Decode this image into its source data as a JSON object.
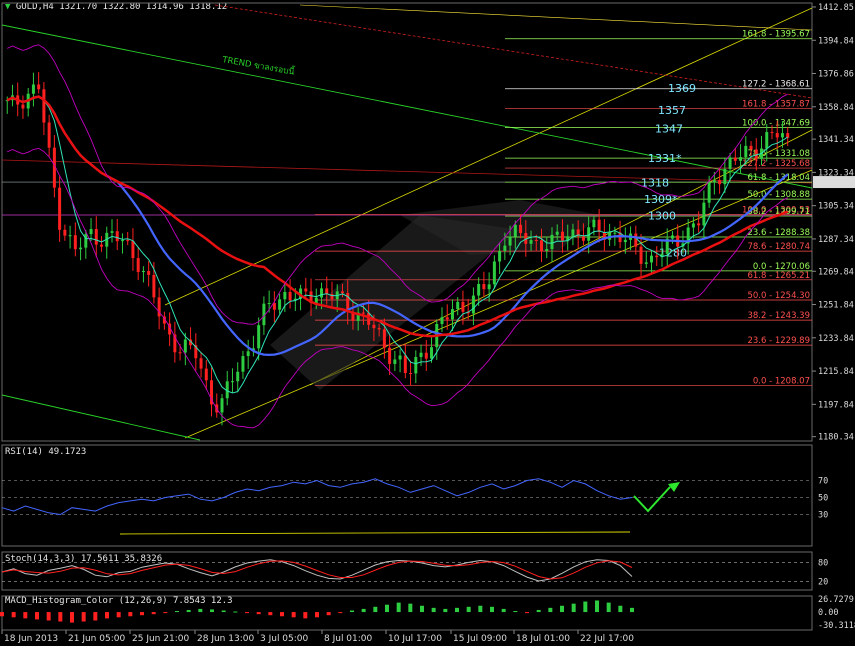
{
  "chart_data": [
    {
      "type": "candlestick",
      "symbol_label": "GOLD,H4",
      "ohlc_label": "1321.70 1322.80 1314.96 1318.12",
      "price_ticks": [
        1412.85,
        1394.84,
        1376.86,
        1358.84,
        1341.34,
        1323.34,
        1305.34,
        1287.34,
        1269.84,
        1251.84,
        1233.84,
        1215.84,
        1197.84,
        1180.34
      ],
      "price_range": [
        1178,
        1415
      ],
      "current_price": "1318.12",
      "x_labels": [
        "18 Jun 2013",
        "21 Jun 05:00",
        "25 Jun 21:00",
        "28 Jun 13:00",
        "3 Jul 05:00",
        "8 Jul 01:00",
        "10 Jul 17:00",
        "15 Jul 09:00",
        "18 Jul 01:00",
        "22 Jul 17:00"
      ],
      "close_path": [
        [
          0,
          1362
        ],
        [
          0.01,
          1358
        ],
        [
          0.03,
          1366
        ],
        [
          0.045,
          1370
        ],
        [
          0.055,
          1340
        ],
        [
          0.07,
          1300
        ],
        [
          0.09,
          1280
        ],
        [
          0.11,
          1290
        ],
        [
          0.13,
          1288
        ],
        [
          0.15,
          1286
        ],
        [
          0.17,
          1275
        ],
        [
          0.2,
          1240
        ],
        [
          0.22,
          1228
        ],
        [
          0.24,
          1225
        ],
        [
          0.26,
          1200
        ],
        [
          0.27,
          1195
        ],
        [
          0.29,
          1218
        ],
        [
          0.31,
          1232
        ],
        [
          0.33,
          1252
        ],
        [
          0.35,
          1258
        ],
        [
          0.37,
          1254
        ],
        [
          0.39,
          1260
        ],
        [
          0.41,
          1256
        ],
        [
          0.43,
          1250
        ],
        [
          0.45,
          1244
        ],
        [
          0.47,
          1230
        ],
        [
          0.49,
          1222
        ],
        [
          0.5,
          1212
        ],
        [
          0.52,
          1226
        ],
        [
          0.54,
          1240
        ],
        [
          0.56,
          1250
        ],
        [
          0.58,
          1254
        ],
        [
          0.6,
          1262
        ],
        [
          0.62,
          1290
        ],
        [
          0.64,
          1288
        ],
        [
          0.66,
          1286
        ],
        [
          0.68,
          1284
        ],
        [
          0.7,
          1292
        ],
        [
          0.72,
          1290
        ],
        [
          0.74,
          1292
        ],
        [
          0.76,
          1290
        ],
        [
          0.78,
          1282
        ],
        [
          0.8,
          1276
        ],
        [
          0.82,
          1282
        ],
        [
          0.84,
          1290
        ],
        [
          0.86,
          1296
        ],
        [
          0.88,
          1322
        ],
        [
          0.9,
          1328
        ],
        [
          0.92,
          1334
        ],
        [
          0.94,
          1340
        ],
        [
          0.96,
          1344
        ],
        [
          0.98,
          1336
        ],
        [
          1.0,
          1318
        ]
      ],
      "fibonacci_lower": [
        {
          "ratio": "100.0",
          "value": "1300.53",
          "level": 1300.53
        },
        {
          "ratio": "78.6",
          "value": "1280.74",
          "level": 1280.74
        },
        {
          "ratio": "61.8",
          "value": "1265.21",
          "level": 1265.21
        },
        {
          "ratio": "50.0",
          "value": "1254.30",
          "level": 1254.3
        },
        {
          "ratio": "38.2",
          "value": "1243.39",
          "level": 1243.39
        },
        {
          "ratio": "23.6",
          "value": "1229.89",
          "level": 1229.89
        },
        {
          "ratio": "0.0",
          "value": "1208.07",
          "level": 1208.07
        }
      ],
      "fibonacci_upper": [
        {
          "ratio": "161.8",
          "value": "1395.67",
          "level": 1395.67,
          "color": "#9cff5a"
        },
        {
          "ratio": "127.2",
          "value": "1368.61",
          "level": 1368.61,
          "color": "#e8e8e8"
        },
        {
          "ratio": "161.8",
          "value": "1357.87",
          "level": 1357.87,
          "color": "#ff5050"
        },
        {
          "ratio": "100.0",
          "value": "1347.69",
          "level": 1347.69,
          "color": "#9cff5a"
        },
        {
          "ratio": "78.6",
          "value": "1331.08",
          "level": 1331.08,
          "color": "#9cff5a"
        },
        {
          "ratio": "127.2",
          "value": "1325.68",
          "level": 1325.68,
          "color": "#ff5050"
        },
        {
          "ratio": "61.8",
          "value": "1318.04",
          "level": 1318.04,
          "color": "#9cff5a"
        },
        {
          "ratio": "50.0",
          "value": "1308.88",
          "level": 1308.88,
          "color": "#9cff5a"
        },
        {
          "ratio": "38.2",
          "value": "1299.71",
          "level": 1299.71,
          "color": "#9cff5a"
        },
        {
          "ratio": "23.6",
          "value": "1288.38",
          "level": 1288.38,
          "color": "#9cff5a"
        },
        {
          "ratio": "0.0",
          "value": "1270.06",
          "level": 1270.06,
          "color": "#9cff5a"
        }
      ],
      "key_levels": [
        {
          "text": "1369",
          "value": 1369,
          "color": "#4aa8b8"
        },
        {
          "text": "1357",
          "value": 1357,
          "color": "#7fe6ff"
        },
        {
          "text": "1347",
          "value": 1347,
          "color": "#7fe6ff"
        },
        {
          "text": "1331*",
          "value": 1331,
          "color": "#7fe6ff"
        },
        {
          "text": "1318",
          "value": 1318,
          "color": "#ffffff"
        },
        {
          "text": "1309*",
          "value": 1309,
          "color": "#7fe6ff"
        },
        {
          "text": "1300",
          "value": 1300,
          "color": "#7fe6ff"
        },
        {
          "text": "1280",
          "value": 1280,
          "color": "#7fe6ff"
        }
      ],
      "trend_label": "TREND ขาลงรอบนี้",
      "colors": {
        "bull": "#2ecc40",
        "bear": "#ff2020",
        "ma_fast": "#2ee6b8",
        "ma_mid": "#4466ff",
        "ma_slow": "#e81010",
        "bollinger": "#c000c0",
        "channel": "#d9d900",
        "trend": "#29d129",
        "fib_green": "#9cff5a",
        "fib_red": "#ff5050"
      }
    },
    {
      "type": "line",
      "label": "RSI(14) 49.1723",
      "y_ticks": [
        70,
        50,
        30
      ],
      "ylim": [
        0,
        100
      ],
      "values": [
        38,
        34,
        40,
        36,
        32,
        30,
        38,
        36,
        34,
        40,
        44,
        46,
        48,
        46,
        50,
        52,
        54,
        48,
        46,
        50,
        56,
        60,
        58,
        62,
        64,
        68,
        66,
        70,
        64,
        62,
        66,
        68,
        72,
        66,
        62,
        56,
        60,
        64,
        58,
        52,
        56,
        62,
        66,
        60,
        64,
        70,
        72,
        68,
        62,
        70,
        66,
        58,
        52,
        48,
        50
      ]
    },
    {
      "type": "line",
      "label": "Stoch(14,3,3) 17.5611 35.8326",
      "y_ticks": [
        80,
        20
      ],
      "ylim": [
        0,
        100
      ],
      "values": [
        50,
        60,
        45,
        40,
        55,
        62,
        70,
        58,
        40,
        35,
        48,
        52,
        65,
        72,
        78,
        74,
        60,
        48,
        38,
        50,
        66,
        78,
        84,
        88,
        82,
        70,
        54,
        40,
        30,
        28,
        40,
        56,
        72,
        82,
        86,
        84,
        78,
        70,
        66,
        72,
        80,
        86,
        82,
        70,
        52,
        34,
        22,
        28,
        46,
        66,
        82,
        88,
        86,
        70,
        36
      ]
    },
    {
      "type": "bar",
      "label": "MACD_Histogram_Color (12,26,9) 7.8543 12.3",
      "y_ticks": [
        "26.7279",
        "0.00",
        "-30.3118"
      ],
      "ylim": [
        -30.3118,
        26.7279
      ],
      "values": [
        -8,
        -10,
        -12,
        -14,
        -16,
        -18,
        -20,
        -18,
        -16,
        -12,
        -10,
        -8,
        -6,
        -4,
        -2,
        2,
        4,
        6,
        5,
        3,
        1,
        -2,
        -4,
        -6,
        -8,
        -10,
        -12,
        -10,
        -6,
        -2,
        3,
        6,
        10,
        14,
        18,
        16,
        12,
        8,
        6,
        8,
        10,
        12,
        10,
        6,
        2,
        -2,
        4,
        8,
        12,
        16,
        20,
        22,
        18,
        12,
        8
      ]
    }
  ]
}
